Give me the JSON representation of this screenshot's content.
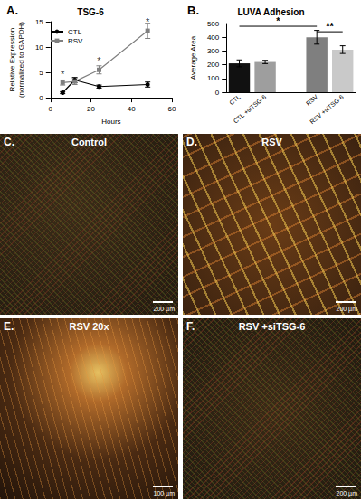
{
  "chart_data": [
    {
      "type": "line",
      "panel": "A.",
      "title": "TSG-6",
      "xlabel": "Hours",
      "ylabel": [
        "Relative Expression",
        "(normalized to GAPDH)"
      ],
      "x": [
        6,
        12,
        24,
        48
      ],
      "xlim": [
        0,
        60
      ],
      "xticks": [
        0,
        20,
        40,
        60
      ],
      "ylim": [
        0,
        15
      ],
      "yticks": [
        0,
        5,
        10,
        15
      ],
      "grid": false,
      "legend": "upper left",
      "series": [
        {
          "name": "CTL",
          "color": "#000000",
          "marker": "circle",
          "line_style": "solid",
          "values": [
            1.0,
            3.5,
            2.2,
            2.6
          ],
          "errors": [
            0.2,
            0.5,
            0.3,
            0.5
          ]
        },
        {
          "name": "RSV",
          "color": "#808080",
          "marker": "square",
          "line_style": "solid",
          "values": [
            3.0,
            3.2,
            5.5,
            13.2
          ],
          "errors": [
            0.5,
            0.6,
            0.8,
            1.5
          ]
        }
      ],
      "annotations": [
        {
          "text": "*",
          "x": 6,
          "y": 4.6
        },
        {
          "text": "*",
          "x": 24,
          "y": 7.3
        },
        {
          "text": "*",
          "x": 48,
          "y": 15.0
        }
      ]
    },
    {
      "type": "bar",
      "panel": "B.",
      "title": "LUVA Adhesion",
      "ylabel": "Average Area",
      "categories": [
        "CTL",
        "CTL +siTSG-6",
        null,
        "RSV",
        "RSV +siTSG-6"
      ],
      "values": [
        210,
        220,
        null,
        400,
        310
      ],
      "errors": [
        25,
        12,
        null,
        50,
        28
      ],
      "colors": [
        "#111111",
        "#9e9e9e",
        null,
        "#7f7f7f",
        "#c9c9c9"
      ],
      "ylim": [
        0,
        500
      ],
      "yticks": [
        0,
        100,
        200,
        300,
        400,
        500
      ],
      "grid": false,
      "annotations": [
        {
          "text": "*",
          "from": "CTL",
          "to": "RSV",
          "y": 480
        },
        {
          "text": "**",
          "from": "RSV",
          "to": "RSV +siTSG-6",
          "y": 440
        }
      ]
    }
  ],
  "panels": [
    {
      "letter": "C.",
      "title": "Control",
      "scale_bar": "200 µm"
    },
    {
      "letter": "D.",
      "title": "RSV",
      "scale_bar": "200 µm"
    },
    {
      "letter": "E.",
      "title": "RSV 20x",
      "scale_bar": "100 µm"
    },
    {
      "letter": "F.",
      "title": "RSV +siTSG-6",
      "scale_bar": "200 µm"
    }
  ]
}
